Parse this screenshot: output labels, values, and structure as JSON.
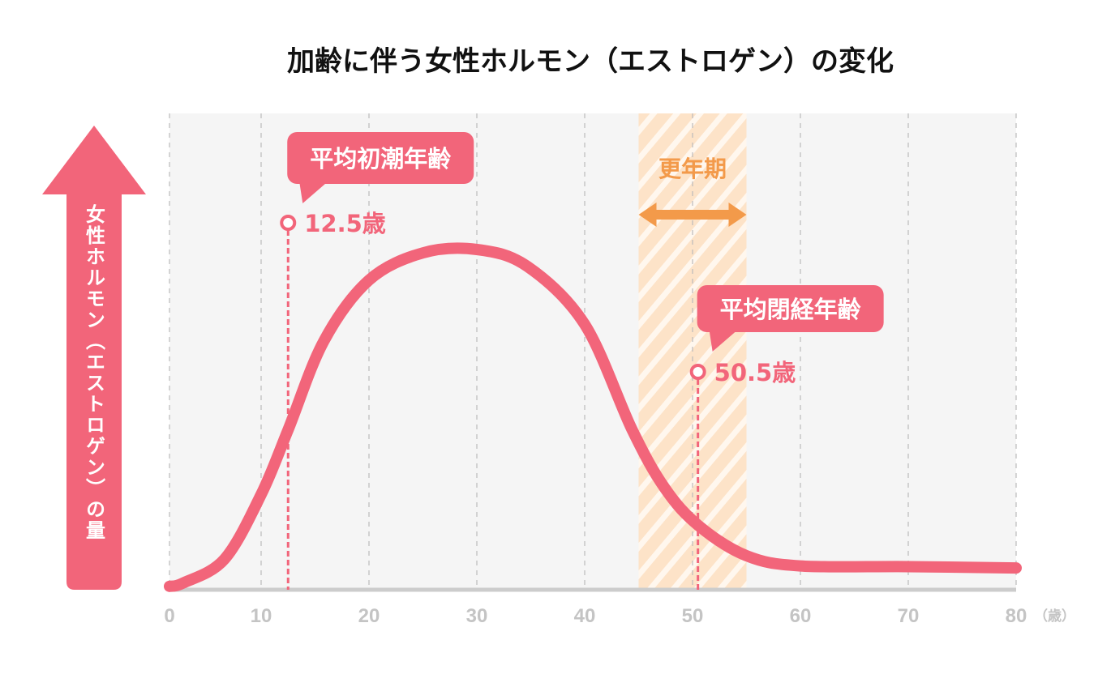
{
  "chart_data": {
    "type": "line",
    "title": "加齢に伴う女性ホルモン（エストロゲン）の変化",
    "ylabel": "女性ホルモン（エストロゲン）の量",
    "xlabel_unit": "（歳）",
    "xlim": [
      0,
      80
    ],
    "ylim": [
      0,
      100
    ],
    "xticks": [
      0,
      10,
      20,
      30,
      40,
      50,
      60,
      70,
      80
    ],
    "grid": "vertical dashed",
    "series": [
      {
        "x": [
          0,
          1.5,
          6,
          10,
          12.5,
          15.8,
          20,
          25,
          30,
          34.7,
          40,
          44.4,
          47.4,
          50.5,
          55,
          60,
          70,
          80
        ],
        "values": [
          1,
          2,
          9,
          28,
          47,
          73,
          91,
          99,
          100,
          95,
          78,
          47,
          30,
          19,
          10,
          7,
          6.8,
          6.4
        ],
        "color": "#f2657a"
      }
    ],
    "annotations": [
      {
        "label": "平均初潮年齢",
        "x": 12.5,
        "value_text": "12.5歳"
      },
      {
        "label": "平均閉経年齢",
        "x": 50.5,
        "value_text": "50.5歳"
      }
    ],
    "band": {
      "label": "更年期",
      "from": 45,
      "to": 55,
      "color": "#f39a4a"
    }
  },
  "colors": {
    "pink": "#f2657a",
    "orange": "#f39a4a",
    "band": "#fde3c8",
    "grid": "#bbbbbb",
    "axis": "#cccccc",
    "tick": "#c4c4c4"
  }
}
